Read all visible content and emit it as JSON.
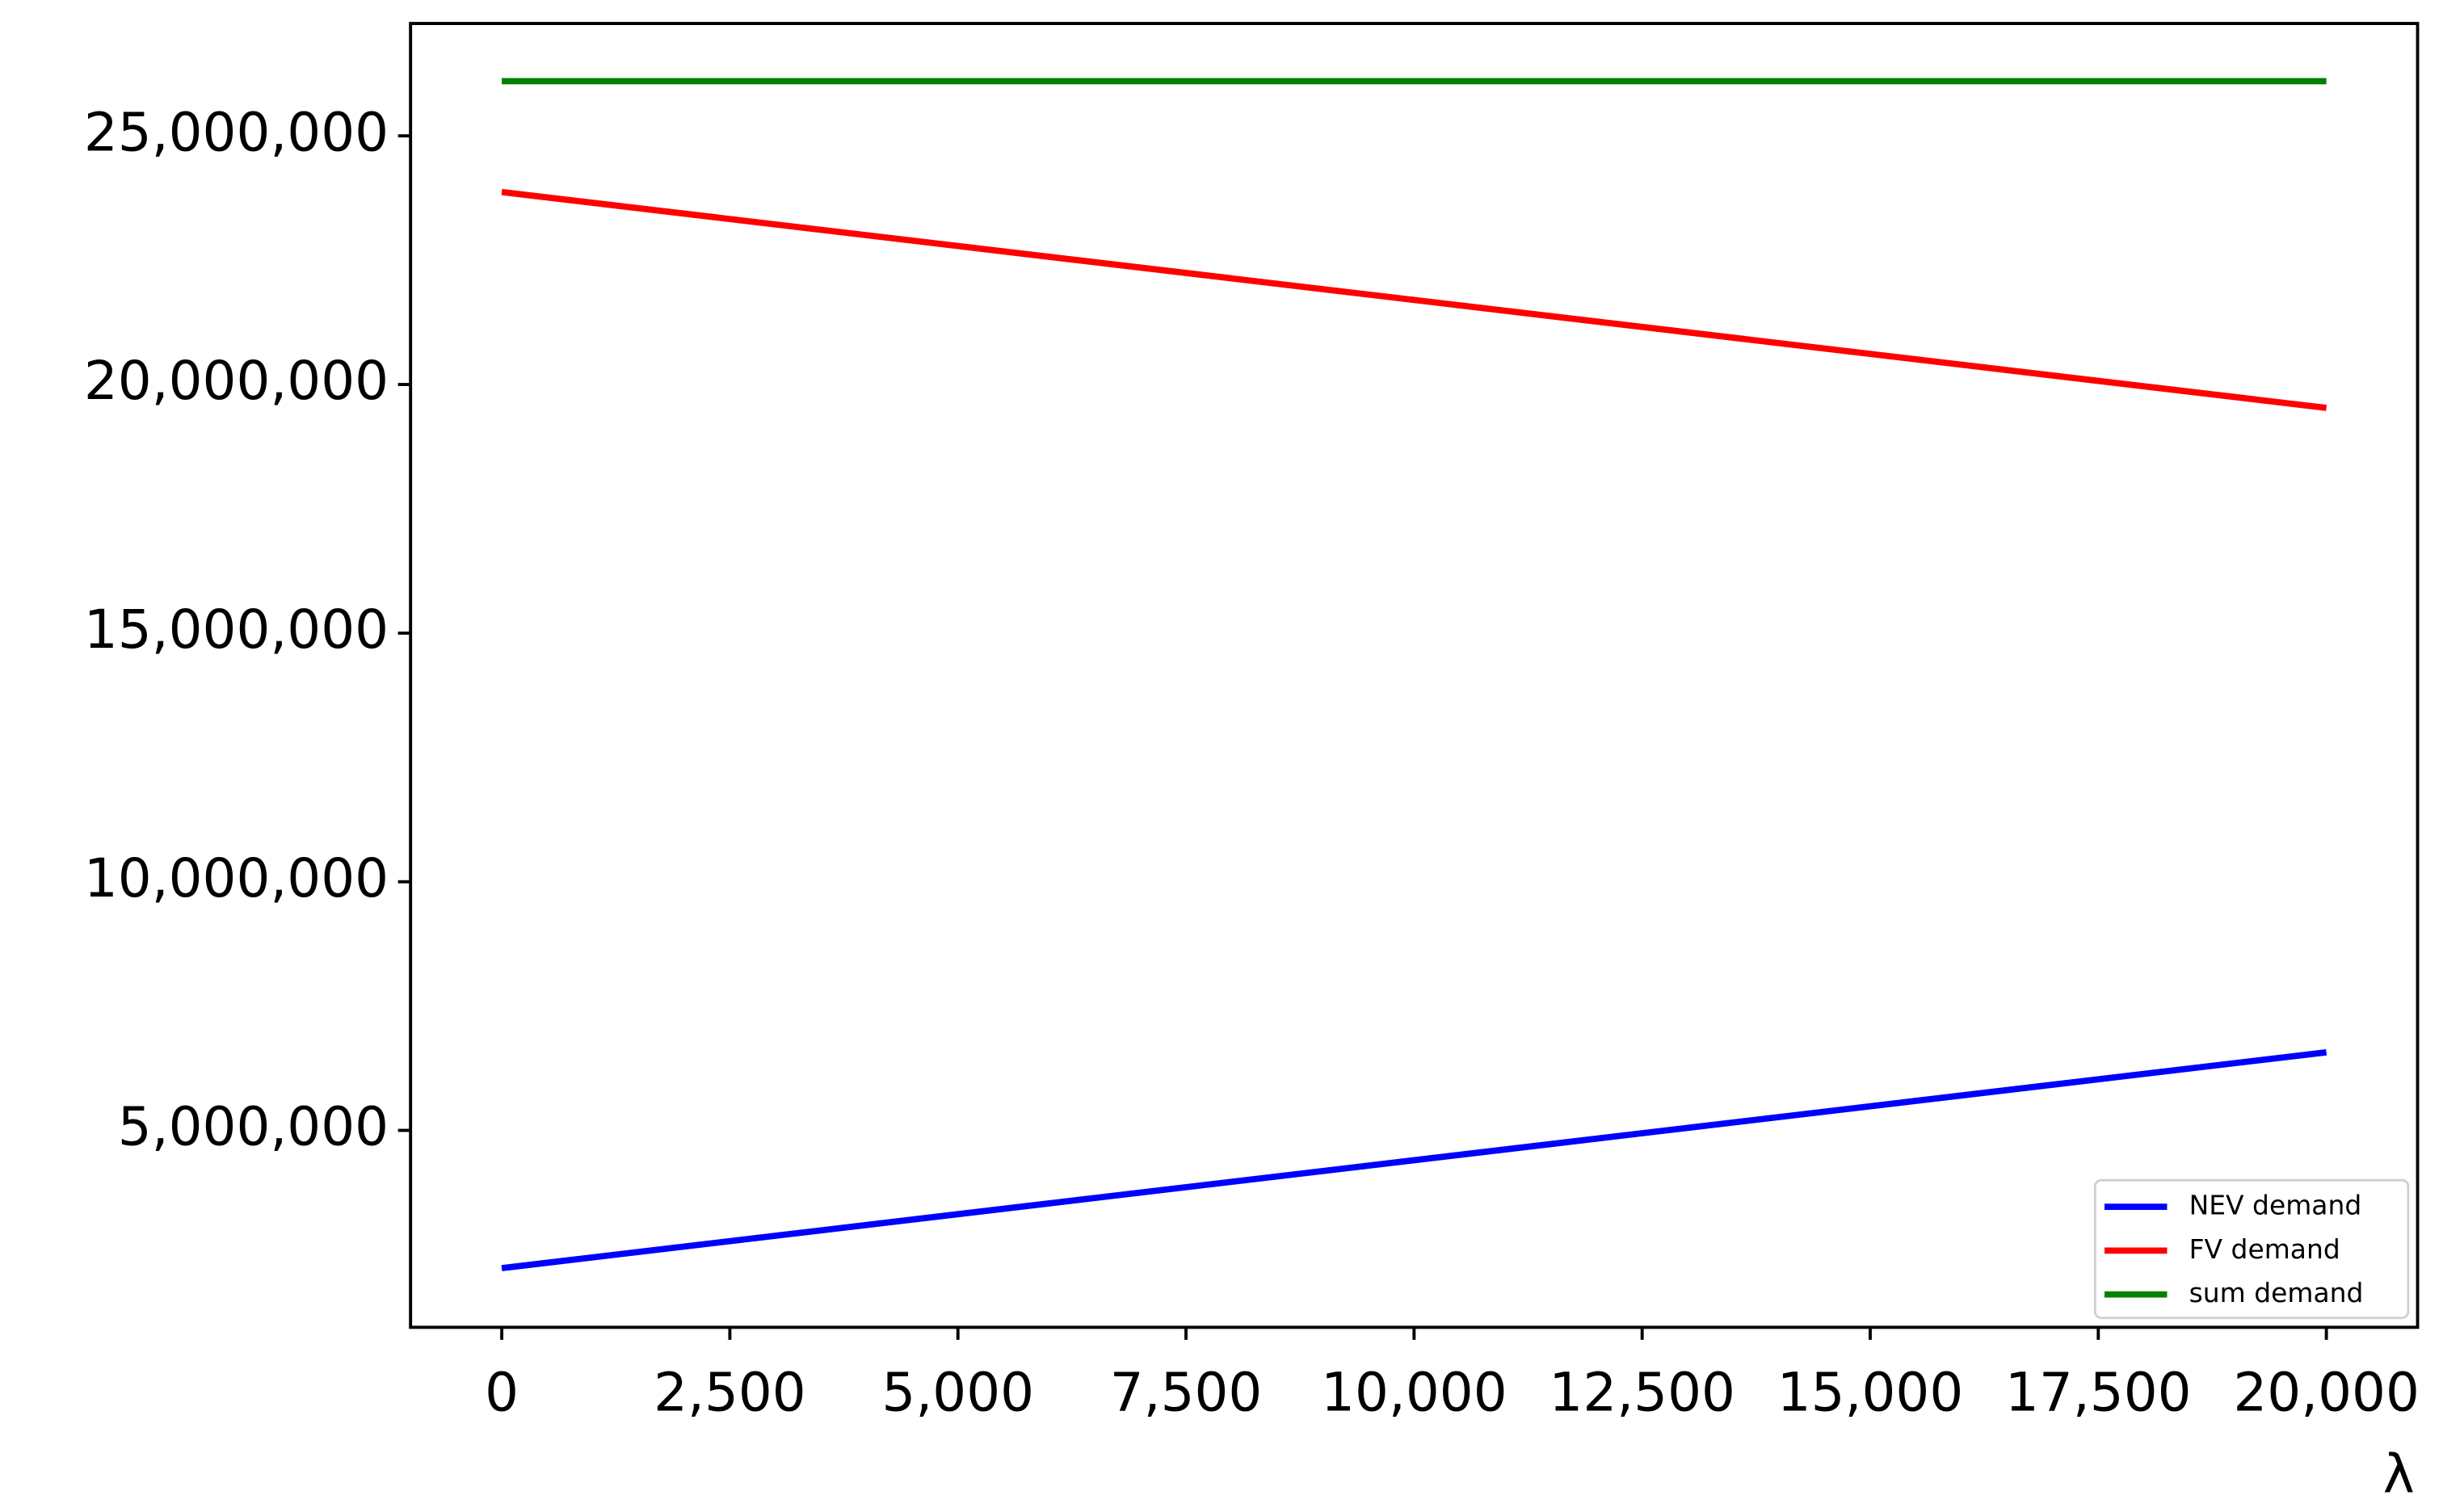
{
  "chart_data": {
    "type": "line",
    "x_label": "λ",
    "x": [
      0,
      20000
    ],
    "series": [
      {
        "name": "NEV demand",
        "color": "#0000ff",
        "values": [
          2230000,
          6570000
        ]
      },
      {
        "name": "FV demand",
        "color": "#ff0000",
        "values": [
          23870000,
          19530000
        ]
      },
      {
        "name": "sum demand",
        "color": "#008000",
        "values": [
          26100000,
          26100000
        ]
      }
    ],
    "xlim": [
      -1000,
      21000
    ],
    "ylim": [
      1040000,
      27260000
    ],
    "xticks": [
      0,
      {
        "value": 2500,
        "label": "2,500"
      },
      {
        "value": 5000,
        "label": "5,000"
      },
      {
        "value": 7500,
        "label": "7,500"
      },
      {
        "value": 10000,
        "label": "10,000"
      },
      {
        "value": 12500,
        "label": "12,500"
      },
      {
        "value": 15000,
        "label": "15,000"
      },
      {
        "value": 17500,
        "label": "17,500"
      },
      {
        "value": 20000,
        "label": "20,000"
      }
    ],
    "yticks": [
      {
        "value": 5000000,
        "label": "5,000,000"
      },
      {
        "value": 10000000,
        "label": "10,000,000"
      },
      {
        "value": 15000000,
        "label": "15,000,000"
      },
      {
        "value": 20000000,
        "label": "20,000,000"
      },
      {
        "value": 25000000,
        "label": "25,000,000"
      }
    ],
    "legend": "lower right",
    "grid": false
  }
}
